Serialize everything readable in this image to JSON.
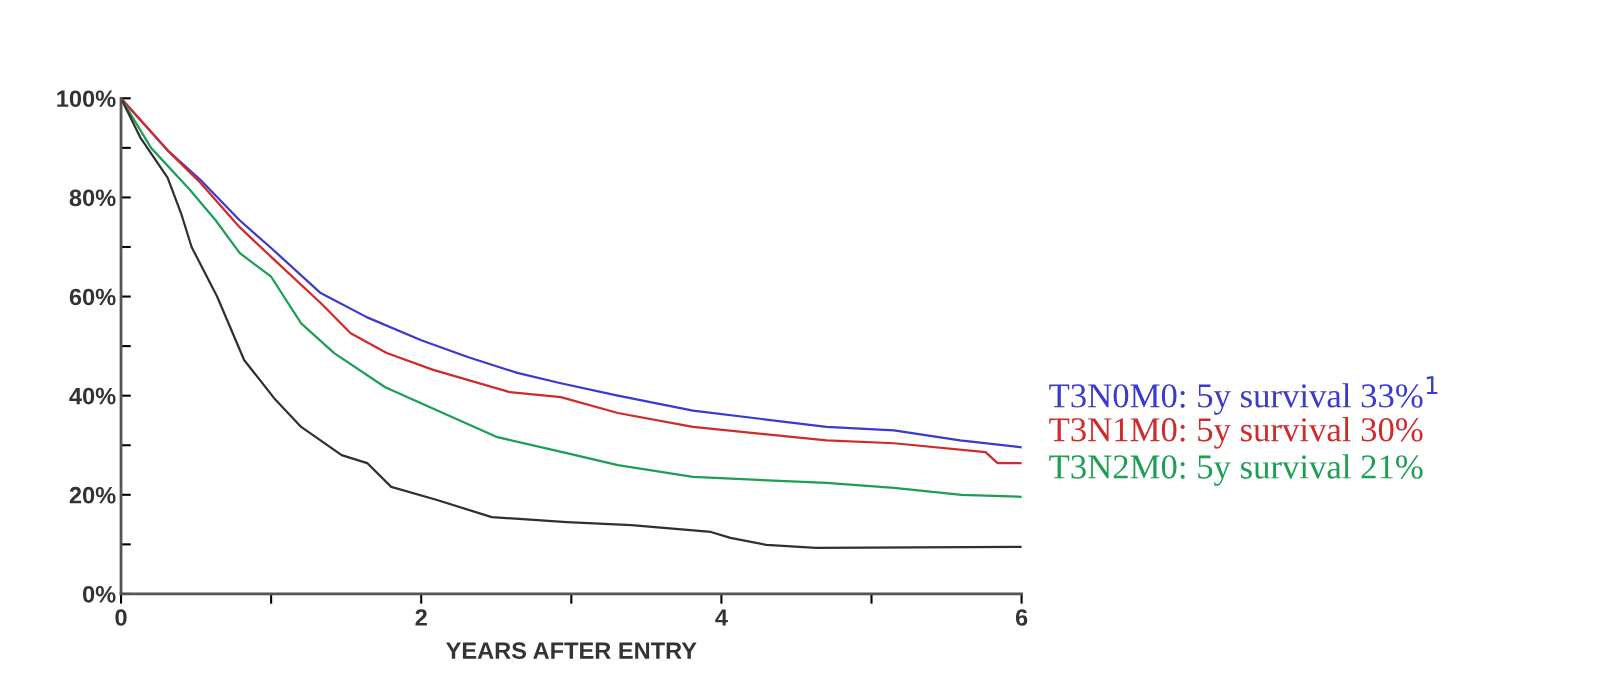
{
  "chart_data": {
    "type": "line",
    "xlabel": "YEARS AFTER ENTRY",
    "xlim": [
      0,
      6
    ],
    "ylim": [
      0,
      100
    ],
    "xticks": [
      0,
      {
        "value": 1,
        "label": null
      },
      2,
      {
        "value": 3,
        "label": null
      },
      4,
      {
        "value": 5,
        "label": null
      },
      6
    ],
    "yticks": [
      {
        "value": 0,
        "label": "0%"
      },
      {
        "value": 10,
        "label": null
      },
      {
        "value": 20,
        "label": "20%"
      },
      {
        "value": 30,
        "label": null
      },
      {
        "value": 40,
        "label": "40%"
      },
      {
        "value": 50,
        "label": null
      },
      {
        "value": 60,
        "label": "60%"
      },
      {
        "value": 70,
        "label": null
      },
      {
        "value": 80,
        "label": "80%"
      },
      {
        "value": 90,
        "label": null
      },
      {
        "value": 100,
        "label": "100%"
      }
    ],
    "grid": false,
    "legend": false,
    "marker": "none",
    "line_style": "solid",
    "series": [
      {
        "name": "T3N0M0: 5y survival 33%$^{1}$",
        "color": "#3a3acc",
        "x": [
          0,
          0.31,
          0.53,
          0.79,
          1,
          1.33,
          1.64,
          2,
          2.31,
          2.64,
          2.93,
          3.31,
          3.81,
          4.7,
          5.15,
          5.59,
          6
        ],
        "values": [
          100,
          89.5,
          83.5,
          75.4,
          69.8,
          60.7,
          55.8,
          51.2,
          47.8,
          44.6,
          42.5,
          40,
          37,
          33.7,
          33,
          31,
          29.6
        ]
      },
      {
        "name": "T3N1M0: 5y survival 30%",
        "color": "#d02a2a",
        "x": [
          0,
          0.31,
          0.53,
          0.79,
          1,
          1.33,
          1.53,
          1.77,
          2.08,
          2.59,
          2.93,
          3.31,
          3.81,
          4.7,
          5.15,
          5.76,
          5.84,
          6
        ],
        "values": [
          100,
          89.5,
          82.9,
          74,
          68,
          58.7,
          52.6,
          48.6,
          45.2,
          40.7,
          39.7,
          36.5,
          33.7,
          31,
          30.4,
          28.6,
          26.4,
          26.4
        ]
      },
      {
        "name": "T3N2M0: 5y survival 21%",
        "color": "#1e9e55",
        "x": [
          0,
          0.2,
          0.46,
          0.63,
          0.79,
          1,
          1.2,
          1.42,
          1.76,
          2.1,
          2.5,
          2.97,
          3.31,
          3.81,
          4.7,
          5.15,
          5.6,
          6
        ],
        "values": [
          100,
          90,
          81.5,
          75.4,
          68.8,
          64,
          54.6,
          48.6,
          41.7,
          37.1,
          31.7,
          28.4,
          26,
          23.6,
          22.4,
          21.4,
          20,
          19.6
        ]
      },
      {
        "color": "#303030",
        "x": [
          0,
          0.13,
          0.31,
          0.4,
          0.47,
          0.64,
          0.82,
          1.02,
          1.2,
          1.47,
          1.64,
          1.8,
          2.1,
          2.47,
          2.97,
          3.4,
          3.93,
          4.06,
          4.3,
          4.63,
          6
        ],
        "values": [
          100,
          92,
          84,
          76.8,
          70,
          60,
          47.2,
          39.5,
          33.7,
          28,
          26.4,
          21.6,
          19,
          15.5,
          14.5,
          13.9,
          12.5,
          11.3,
          9.9,
          9.3,
          9.5
        ]
      }
    ]
  }
}
